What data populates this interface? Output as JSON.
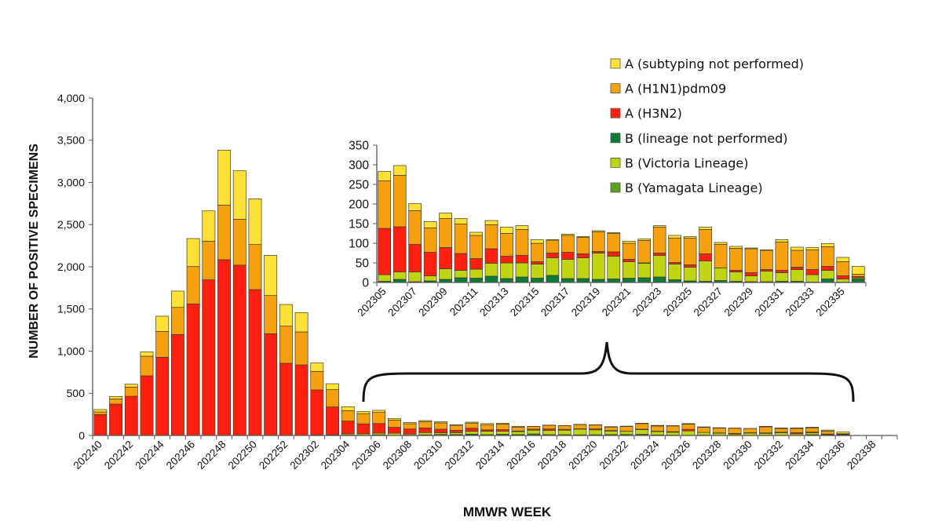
{
  "chart_data": [
    {
      "type": "bar",
      "stacked": true,
      "xlabel": "MMWR WEEK",
      "ylabel": "NUMBER OF POSITIVE SPECIMENS",
      "ylim": [
        0,
        4000
      ],
      "yticks": [
        "0",
        "500",
        "1,000",
        "1,500",
        "2,000",
        "2,500",
        "3,000",
        "3,500",
        "4,000"
      ],
      "grid": false,
      "legend_placement": "top-right",
      "categories": [
        "202240",
        "202241",
        "202242",
        "202243",
        "202244",
        "202245",
        "202246",
        "202247",
        "202248",
        "202249",
        "202250",
        "202251",
        "202252",
        "202301",
        "202302",
        "202303",
        "202304",
        "202305",
        "202306",
        "202307",
        "202308",
        "202309",
        "202310",
        "202311",
        "202312",
        "202313",
        "202314",
        "202315",
        "202316",
        "202317",
        "202318",
        "202319",
        "202320",
        "202321",
        "202322",
        "202323",
        "202324",
        "202325",
        "202326",
        "202327",
        "202328",
        "202329",
        "202330",
        "202331",
        "202332",
        "202333",
        "202334",
        "202335",
        "202336",
        "202337",
        "202338",
        "202339"
      ],
      "tick_labels": [
        "202240",
        "202242",
        "202244",
        "202246",
        "202248",
        "202250",
        "202252",
        "202302",
        "202304",
        "202306",
        "202308",
        "202310",
        "202312",
        "202314",
        "202316",
        "202318",
        "202320",
        "202322",
        "202324",
        "202326",
        "202328",
        "202330",
        "202332",
        "202334",
        "202336",
        "202338"
      ],
      "series": [
        {
          "name": "B (Yamagata Lineage)",
          "color": "#5EA020",
          "values": [
            0,
            0,
            0,
            0,
            0,
            0,
            0,
            0,
            0,
            0,
            0,
            0,
            0,
            0,
            0,
            0,
            0,
            0,
            0,
            0,
            0,
            0,
            0,
            0,
            0,
            0,
            0,
            0,
            0,
            0,
            0,
            0,
            0,
            0,
            0,
            0,
            0,
            0,
            0,
            0,
            0,
            0,
            0,
            0,
            0,
            0,
            0,
            0,
            0,
            0,
            0,
            0
          ]
        },
        {
          "name": "B (lineage not performed)",
          "color": "#0B7A3A",
          "values": [
            0,
            0,
            0,
            0,
            0,
            0,
            0,
            0,
            0,
            0,
            0,
            0,
            0,
            0,
            2,
            3,
            5,
            3,
            8,
            2,
            4,
            8,
            12,
            11,
            16,
            10,
            14,
            11,
            18,
            10,
            10,
            8,
            9,
            11,
            12,
            14,
            7,
            4,
            3,
            5,
            3,
            2,
            2,
            3,
            3,
            1,
            9,
            1,
            9,
            0,
            0,
            0
          ]
        },
        {
          "name": "B (Victoria Lineage)",
          "color": "#BFD412",
          "values": [
            0,
            0,
            0,
            0,
            0,
            0,
            0,
            0,
            0,
            0,
            0,
            0,
            0,
            0,
            3,
            5,
            15,
            17,
            19,
            25,
            13,
            27,
            19,
            23,
            33,
            40,
            36,
            36,
            45,
            49,
            53,
            67,
            58,
            42,
            37,
            55,
            40,
            35,
            52,
            32,
            24,
            15,
            27,
            22,
            30,
            19,
            22,
            8,
            3,
            0,
            0,
            0
          ]
        },
        {
          "name": "A (H3N2)",
          "color": "#FF2010",
          "values": [
            248,
            372,
            465,
            707,
            927,
            1197,
            1560,
            1845,
            2084,
            2019,
            1730,
            1206,
            856,
            837,
            535,
            330,
            151,
            118,
            115,
            70,
            60,
            54,
            43,
            27,
            37,
            17,
            19,
            6,
            12,
            18,
            10,
            4,
            11,
            6,
            1,
            6,
            4,
            6,
            18,
            0,
            4,
            8,
            4,
            6,
            6,
            13,
            10,
            8,
            3,
            0,
            0,
            0
          ]
        },
        {
          "name": "A (H1N1)pdm09",
          "color": "#F5A00F",
          "values": [
            31,
            62,
            109,
            233,
            307,
            322,
            443,
            459,
            648,
            545,
            534,
            453,
            440,
            391,
            220,
            205,
            124,
            121,
            131,
            86,
            62,
            74,
            75,
            59,
            61,
            58,
            66,
            47,
            33,
            43,
            42,
            50,
            47,
            41,
            57,
            66,
            62,
            68,
            62,
            60,
            56,
            61,
            49,
            72,
            43,
            50,
            50,
            36,
            6,
            0,
            0,
            0
          ]
        },
        {
          "name": "A (subtyping not performed)",
          "color": "#FFE135",
          "values": [
            28,
            28,
            34,
            52,
            180,
            193,
            332,
            359,
            651,
            574,
            542,
            477,
            257,
            229,
            99,
            71,
            46,
            24,
            25,
            18,
            16,
            14,
            14,
            8,
            11,
            16,
            10,
            9,
            1,
            3,
            2,
            3,
            2,
            5,
            4,
            4,
            7,
            4,
            6,
            5,
            5,
            2,
            1,
            6,
            8,
            6,
            8,
            11,
            20,
            0,
            0,
            0
          ]
        }
      ]
    },
    {
      "type": "bar",
      "stacked": true,
      "inset": true,
      "ylim": [
        0,
        350
      ],
      "yticks": [
        "0",
        "50",
        "100",
        "150",
        "200",
        "250",
        "300",
        "350"
      ],
      "categories": [
        "202305",
        "202306",
        "202307",
        "202308",
        "202309",
        "202310",
        "202311",
        "202312",
        "202313",
        "202314",
        "202315",
        "202316",
        "202317",
        "202318",
        "202319",
        "202320",
        "202321",
        "202322",
        "202323",
        "202324",
        "202325",
        "202326",
        "202327",
        "202328",
        "202329",
        "202330",
        "202331",
        "202332",
        "202333",
        "202334",
        "202335",
        "202336"
      ],
      "tick_labels": [
        "202305",
        "202307",
        "202309",
        "202311",
        "202313",
        "202315",
        "202317",
        "202319",
        "202321",
        "202323",
        "202325",
        "202327",
        "202329",
        "202331",
        "202333",
        "202335"
      ],
      "series_from_main_start": "202305"
    }
  ],
  "legend": [
    {
      "label": "A (subtyping not performed)",
      "color": "#FFE135"
    },
    {
      "label": "A (H1N1)pdm09",
      "color": "#F5A00F"
    },
    {
      "label": "A (H3N2)",
      "color": "#FF2010"
    },
    {
      "label": "B (lineage not performed)",
      "color": "#0B7A3A"
    },
    {
      "label": "B (Victoria Lineage)",
      "color": "#BFD412"
    },
    {
      "label": "B (Yamagata Lineage)",
      "color": "#5EA020"
    }
  ]
}
